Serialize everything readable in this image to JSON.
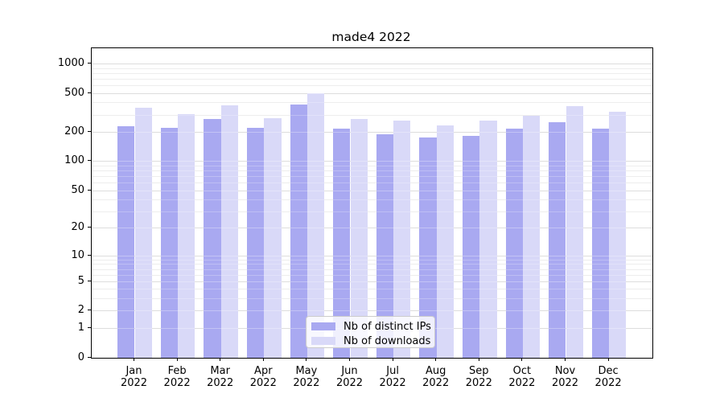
{
  "figure": {
    "background": "#ffffff"
  },
  "chart_data": {
    "type": "bar",
    "title": "made4 2022",
    "categories": [
      "Jan 2022",
      "Feb 2022",
      "Mar 2022",
      "Apr 2022",
      "May 2022",
      "Jun 2022",
      "Jul 2022",
      "Aug 2022",
      "Sep 2022",
      "Oct 2022",
      "Nov 2022",
      "Dec 2022"
    ],
    "x_tick_months": [
      "Jan",
      "Feb",
      "Mar",
      "Apr",
      "May",
      "Jun",
      "Jul",
      "Aug",
      "Sep",
      "Oct",
      "Nov",
      "Dec"
    ],
    "x_tick_year": "2022",
    "series": [
      {
        "name": "Nb of distinct IPs",
        "color": "#a9a9f1",
        "values": [
          230,
          220,
          273,
          220,
          382,
          219,
          190,
          177,
          182,
          217,
          252,
          219
        ]
      },
      {
        "name": "Nb of downloads",
        "color": "#d9d9f8",
        "values": [
          360,
          305,
          375,
          278,
          500,
          276,
          261,
          234,
          261,
          297,
          370,
          327
        ]
      }
    ],
    "yscale": "log10(value+1)",
    "y_ticks": [
      0,
      1,
      2,
      5,
      10,
      20,
      50,
      100,
      200,
      500,
      1000
    ],
    "y_minor_ticks": [
      3,
      4,
      6,
      7,
      8,
      9,
      30,
      40,
      60,
      70,
      80,
      90,
      300,
      400,
      600,
      700,
      800,
      900
    ],
    "ylim": [
      0,
      1460
    ],
    "xlabel": "",
    "ylabel": "",
    "grid": true,
    "legend": {
      "position": "lower center",
      "items": [
        "Nb of distinct IPs",
        "Nb of downloads"
      ]
    }
  },
  "colors": {
    "bar_dark": "#a9a9f1",
    "bar_light": "#d9d9f8",
    "grid_major": "#cfcfcf",
    "grid_minor": "#e7e7e7",
    "axis": "#000000",
    "text": "#000000",
    "legend_border": "#cccccc"
  }
}
